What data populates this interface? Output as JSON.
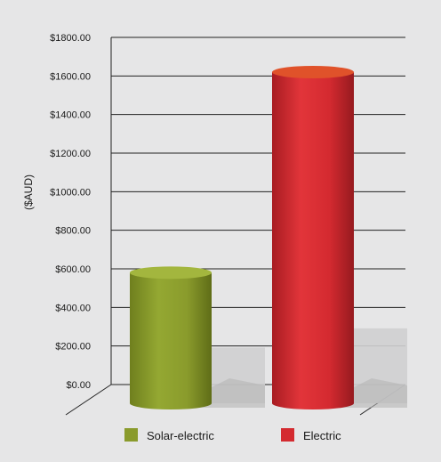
{
  "chart_data": {
    "type": "bar",
    "title": "",
    "xlabel": "",
    "ylabel": "($AUD)",
    "ylim": [
      0,
      1800
    ],
    "yticks": [
      {
        "value": 0,
        "label": "$0.00"
      },
      {
        "value": 200,
        "label": "$200.00"
      },
      {
        "value": 400,
        "label": "$400.00"
      },
      {
        "value": 600,
        "label": "$600.00"
      },
      {
        "value": 800,
        "label": "$800.00"
      },
      {
        "value": 1000,
        "label": "$1000.00"
      },
      {
        "value": 1200,
        "label": "$1200.00"
      },
      {
        "value": 1400,
        "label": "$1400.00"
      },
      {
        "value": 1600,
        "label": "$1600.00"
      },
      {
        "value": 1800,
        "label": "$1800.00"
      }
    ],
    "categories": [
      "Solar-electric",
      "Electric"
    ],
    "values": [
      580,
      1620
    ],
    "colors": [
      "#8a9b2c",
      "#d42a30"
    ],
    "grid": true,
    "legend_position": "bottom",
    "style": "3d-cylinder"
  }
}
